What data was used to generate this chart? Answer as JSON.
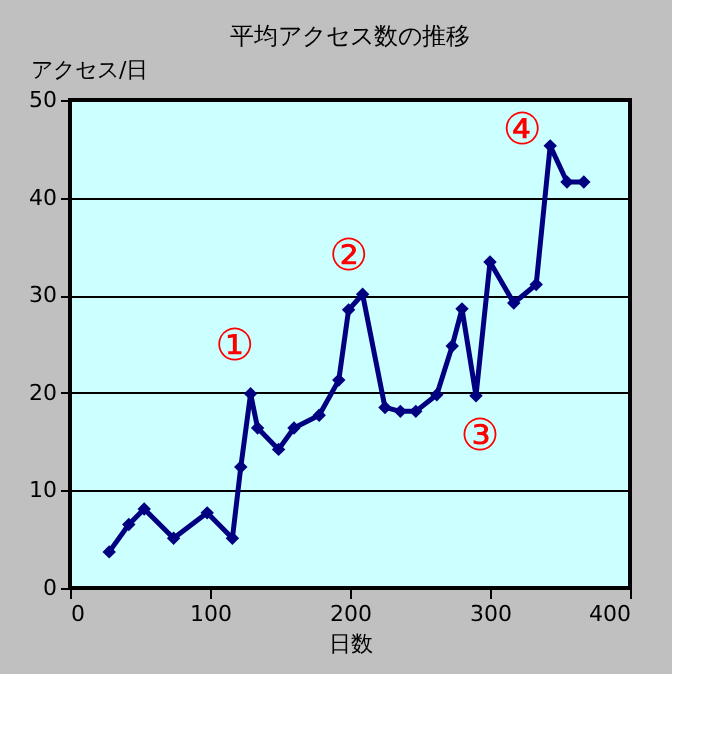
{
  "chart_data": {
    "type": "line",
    "title": "平均アクセス数の推移",
    "xlabel": "日数",
    "ylabel": "アクセス/日",
    "x": [
      28,
      42,
      53,
      74,
      98,
      116,
      122,
      129,
      134,
      149,
      160,
      178,
      192,
      199,
      209,
      225,
      236,
      247,
      262,
      273,
      280,
      290,
      300,
      317,
      333,
      343,
      355,
      367
    ],
    "series": [
      {
        "color": "#000080",
        "values": [
          3.7,
          6.5,
          8.1,
          5.1,
          7.7,
          5.1,
          12.4,
          19.9,
          16.4,
          14.2,
          16.4,
          17.7,
          21.3,
          28.5,
          30.1,
          18.5,
          18.1,
          18.1,
          19.8,
          24.8,
          28.6,
          19.7,
          33.4,
          29.2,
          31.1,
          45.3,
          41.6,
          41.6
        ]
      }
    ],
    "xlim": [
      0,
      400
    ],
    "xticks": [
      0,
      100,
      200,
      300,
      400
    ],
    "ylim": [
      0,
      50
    ],
    "yticks": [
      0,
      10,
      20,
      30,
      40,
      50
    ],
    "grid": "y",
    "marker": "diamond",
    "line_style": "solid",
    "annotations": [
      {
        "text": "①",
        "x": 129,
        "y": 19.9
      },
      {
        "text": "②",
        "x": 209,
        "y": 30.1
      },
      {
        "text": "③",
        "x": 290,
        "y": 19.7
      },
      {
        "text": "④",
        "x": 343,
        "y": 45.3
      }
    ]
  }
}
